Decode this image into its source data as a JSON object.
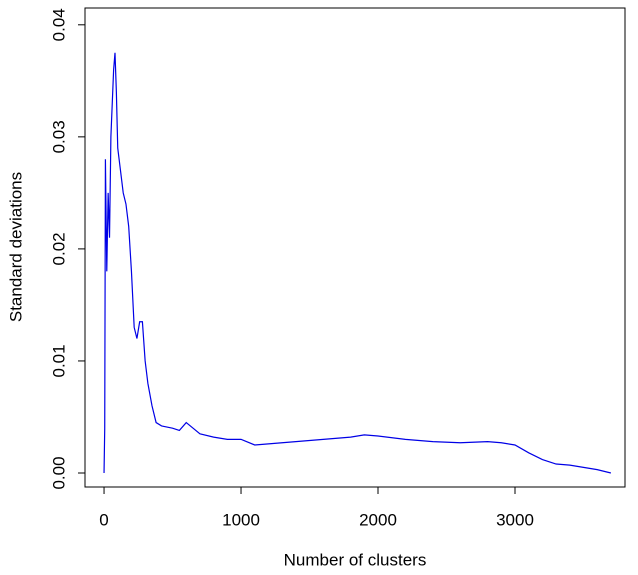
{
  "chart_data": {
    "type": "line",
    "x_label": "Number of clusters",
    "y_label": "Standard deviations",
    "color": "#0000e6",
    "x": [
      0,
      5,
      10,
      20,
      30,
      40,
      50,
      60,
      70,
      80,
      90,
      100,
      120,
      140,
      160,
      180,
      200,
      220,
      240,
      260,
      280,
      300,
      320,
      350,
      380,
      420,
      500,
      550,
      600,
      650,
      700,
      800,
      900,
      1000,
      1100,
      1200,
      1400,
      1600,
      1800,
      1900,
      2000,
      2200,
      2400,
      2600,
      2800,
      2900,
      3000,
      3100,
      3200,
      3300,
      3400,
      3500,
      3600,
      3700
    ],
    "values": [
      0,
      0.004,
      0.028,
      0.018,
      0.025,
      0.021,
      0.03,
      0.033,
      0.036,
      0.0375,
      0.034,
      0.029,
      0.027,
      0.025,
      0.024,
      0.022,
      0.018,
      0.013,
      0.012,
      0.0135,
      0.0135,
      0.01,
      0.008,
      0.006,
      0.0045,
      0.0042,
      0.004,
      0.0038,
      0.0045,
      0.004,
      0.0035,
      0.0032,
      0.003,
      0.003,
      0.0025,
      0.0026,
      0.0028,
      0.003,
      0.0032,
      0.0034,
      0.0033,
      0.003,
      0.0028,
      0.0027,
      0.0028,
      0.0027,
      0.0025,
      0.0018,
      0.0012,
      0.0008,
      0.0007,
      0.0005,
      0.0003,
      0
    ],
    "xlim": [
      -139,
      3803
    ],
    "ylim": [
      -0.00125,
      0.0415
    ],
    "xticks": [
      0,
      1000,
      2000,
      3000
    ],
    "yticks": [
      {
        "value": 0,
        "label": "0.00"
      },
      0.01,
      0.02,
      0.03,
      0.04
    ]
  }
}
